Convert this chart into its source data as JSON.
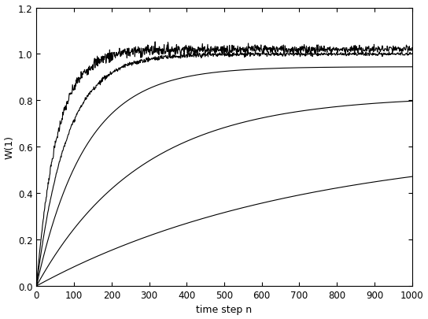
{
  "title": "",
  "xlabel": "time step n",
  "ylabel": "W(1)",
  "xlim": [
    0,
    1000
  ],
  "ylim": [
    0,
    1.2
  ],
  "xticks": [
    0,
    100,
    200,
    300,
    400,
    500,
    600,
    700,
    800,
    900,
    1000
  ],
  "yticks": [
    0,
    0.2,
    0.4,
    0.6,
    0.8,
    1.0,
    1.2
  ],
  "n_steps": 1001,
  "curves": [
    {
      "tau": 55,
      "asymptote": 1.02,
      "noise_amp": 0.018,
      "noise_tau": 80
    },
    {
      "tau": 80,
      "asymptote": 1.0,
      "noise_amp": 0.008,
      "noise_tau": 150
    },
    {
      "tau": 130,
      "asymptote": 0.945,
      "noise_amp": 0.0,
      "noise_tau": 0
    },
    {
      "tau": 280,
      "asymptote": 0.82,
      "noise_amp": 0.0,
      "noise_tau": 0
    },
    {
      "tau": 700,
      "asymptote": 0.62,
      "noise_amp": 0.0,
      "noise_tau": 0
    }
  ],
  "line_color": "#000000",
  "line_width": 0.8,
  "figsize": [
    5.44,
    4.06
  ],
  "dpi": 100,
  "background_color": "#ffffff"
}
